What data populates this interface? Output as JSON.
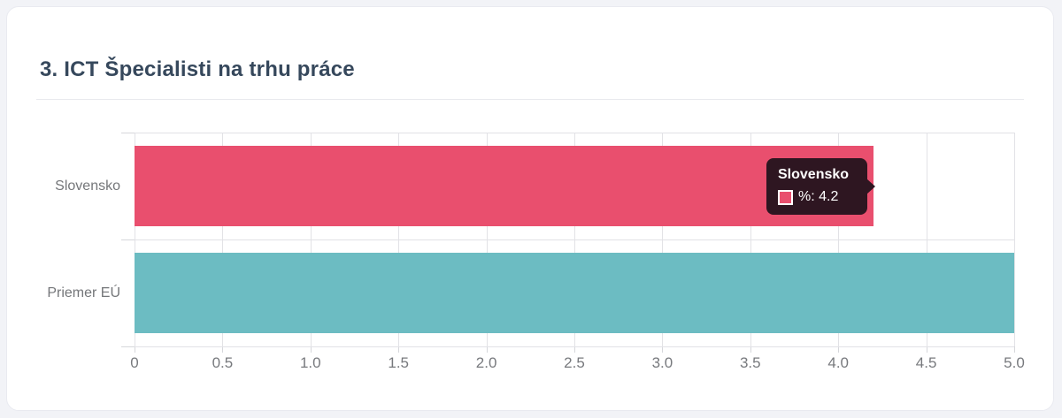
{
  "card": {
    "title": "3. ICT Špecialisti na trhu práce"
  },
  "chart_data": {
    "type": "bar",
    "orientation": "horizontal",
    "title": "3. ICT Špecialisti na trhu práce",
    "categories": [
      "Slovensko",
      "Priemer EÚ"
    ],
    "series": [
      {
        "name": "%",
        "values": [
          4.2,
          5.0
        ]
      }
    ],
    "values": [
      4.2,
      5.0
    ],
    "bar_colors": [
      "#e94f6e",
      "#6cbcc2"
    ],
    "xlim": [
      0,
      5
    ],
    "xtick_labels": [
      "0",
      "0.5",
      "1.0",
      "1.5",
      "2.0",
      "2.5",
      "3.0",
      "3.5",
      "4.0",
      "4.5",
      "5.0"
    ],
    "grid": true,
    "legend": "none"
  },
  "tooltip": {
    "title": "Slovensko",
    "series_name": "%",
    "value": "4.2",
    "label": "%: 4.2",
    "swatch_color": "#e94f6e",
    "background": "#2e1621"
  },
  "colors": {
    "bar_slovensko": "#e94f6e",
    "bar_priemer_eu": "#6cbcc2",
    "grid_line": "#e2e2e6",
    "axis_text": "#77797d",
    "title_text": "#36485c",
    "card_background": "#ffffff",
    "page_background": "#f2f3f7"
  }
}
